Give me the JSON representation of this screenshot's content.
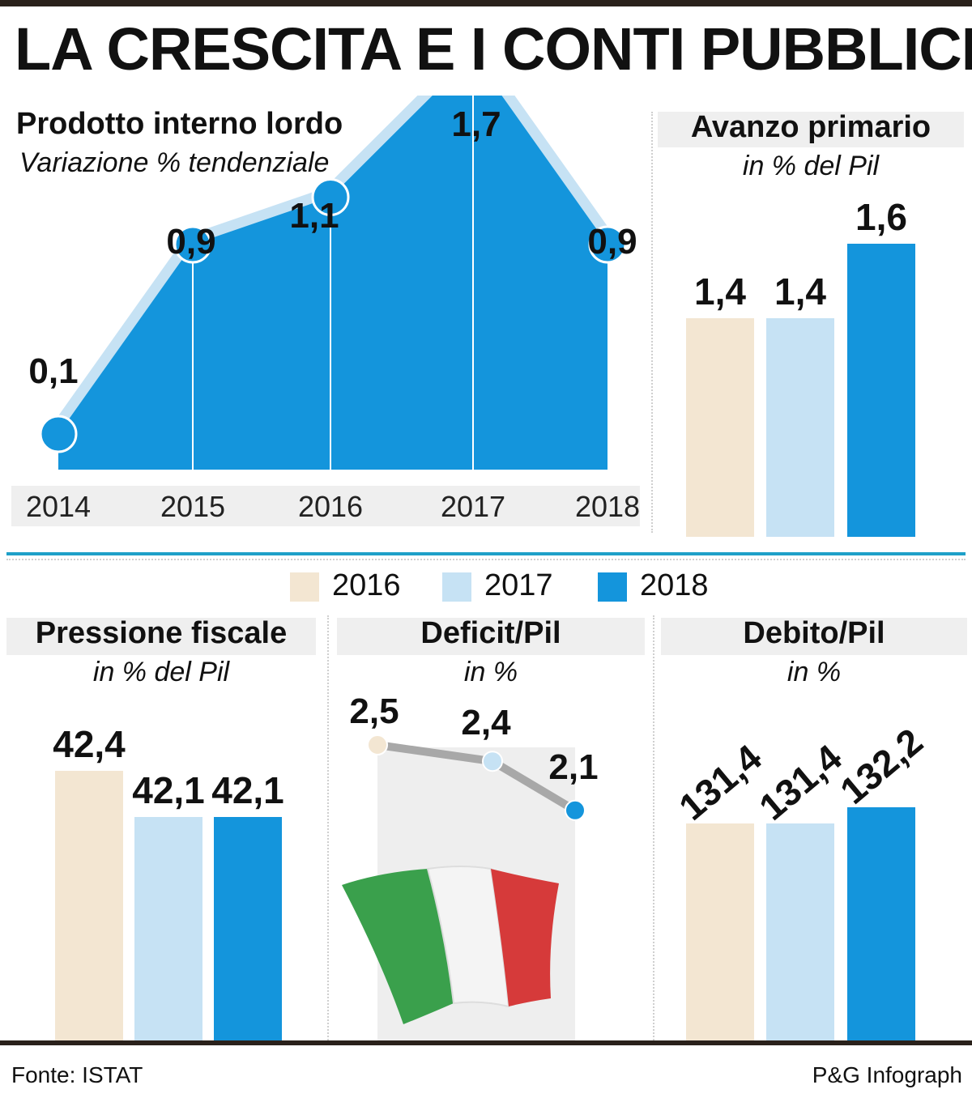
{
  "title": "LA CRESCITA E I CONTI PUBBLICI",
  "colors": {
    "2016": "#f3e6d2",
    "2017": "#c6e2f4",
    "2018": "#1495dc",
    "accent_line": "#1ea0c8",
    "rule": "#2a211b"
  },
  "legend": [
    "2016",
    "2017",
    "2018"
  ],
  "footer": {
    "source": "Fonte: ISTAT",
    "credit": "P&G Infograph"
  },
  "chart_data": [
    {
      "id": "pil",
      "type": "area",
      "title": "Prodotto interno lordo",
      "subtitle": "Variazione % tendenziale",
      "x": [
        "2014",
        "2015",
        "2016",
        "2017",
        "2018"
      ],
      "values": [
        0.1,
        0.9,
        1.1,
        1.7,
        0.9
      ],
      "labels": [
        "0,1",
        "0,9",
        "1,1",
        "1,7",
        "0,9"
      ]
    },
    {
      "id": "avanzo",
      "type": "bar",
      "title": "Avanzo primario",
      "subtitle": "in % del Pil",
      "categories": [
        "2016",
        "2017",
        "2018"
      ],
      "values": [
        1.4,
        1.4,
        1.6
      ],
      "labels": [
        "1,4",
        "1,4",
        "1,6"
      ]
    },
    {
      "id": "pressione",
      "type": "bar",
      "title": "Pressione fiscale",
      "subtitle": "in % del Pil",
      "categories": [
        "2016",
        "2017",
        "2018"
      ],
      "values": [
        42.4,
        42.1,
        42.1
      ],
      "labels": [
        "42,4",
        "42,1",
        "42,1"
      ]
    },
    {
      "id": "deficit",
      "type": "line",
      "title": "Deficit/Pil",
      "subtitle": "in %",
      "categories": [
        "2016",
        "2017",
        "2018"
      ],
      "values": [
        2.5,
        2.4,
        2.1
      ],
      "labels": [
        "2,5",
        "2,4",
        "2,1"
      ]
    },
    {
      "id": "debito",
      "type": "bar",
      "title": "Debito/Pil",
      "subtitle": "in %",
      "categories": [
        "2016",
        "2017",
        "2018"
      ],
      "values": [
        131.4,
        131.4,
        132.2
      ],
      "labels": [
        "131,4",
        "131,4",
        "132,2"
      ]
    }
  ]
}
